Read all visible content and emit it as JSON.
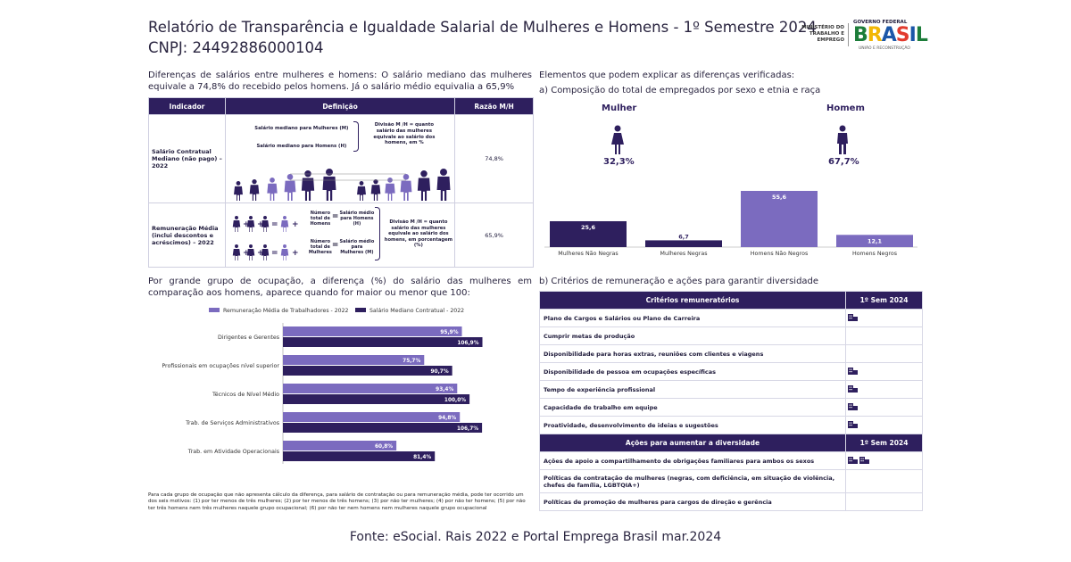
{
  "header": {
    "title": "Relatório de Transparência e Igualdade Salarial de Mulheres e Homens - 1º Semestre 2024",
    "cnpj": "CNPJ: 24492886000104",
    "logo_ministerio": "MINISTÉRIO DO TRABALHO E EMPREGO",
    "logo_governo": "GOVERNO FEDERAL",
    "logo_brasil": "BRASIL",
    "logo_uniao": "UNIÃO E RECONSTRUÇÃO"
  },
  "left": {
    "intro": "Diferenças de salários entre mulheres e homens: O salário mediano das mulheres equivale a 74,8% do recebido pelos homens. Já o salário médio equivalia a 65,9%",
    "table": {
      "headers": [
        "Indicador",
        "Definição",
        "Razão M/H"
      ],
      "rows": [
        {
          "indicator": "Salário Contratual Mediano (não pago) – 2022",
          "def_line1": "Salário mediano para Mulheres (M)",
          "def_line2": "Salário mediano para Homens (H)",
          "def_note": "Divisão M /H = quanto salário das mulheres equivale ao salário dos homens, em %",
          "ratio": "74,8%"
        },
        {
          "indicator": "Remuneração Média (inclui descontos e acréscimos) – 2022",
          "def_total_w": "Número total de Homens",
          "def_sal_w": "Salário médio para Homens (H)",
          "def_total_m": "Número total de Mulheres",
          "def_sal_m": "Salário médio para Mulheres (M)",
          "def_note": "Divisão M /H = quanto salário das mulheres equivale ao salário dos homens, em porcentagem (%)",
          "ratio": "65,9%"
        }
      ]
    },
    "group_intro": "Por grande grupo de ocupação, a diferença (%) do salário das mulheres em comparação aos homens, aparece quando for maior ou menor que 100:",
    "note": "Para cada grupo de ocupação que não apresenta cálculo da diferença, para salário de contratação ou para remuneração média, pode ter ocorrido um dos seis motivos: (1) por ter menos de três mulheres; (2) por ter menos de três homens; (3) por não ter mulheres; (4) por não ter homens; (5) por não ter três homens nem três mulheres naquele grupo ocupacional; (6) por não ter nem homens nem mulheres naquele grupo ocupacional"
  },
  "right": {
    "intro": "Elementos que podem explicar as diferenças verificadas:",
    "a_title": "a) Composição do total de empregados por sexo e etnia e raça",
    "women_label": "Mulher",
    "men_label": "Homem",
    "women_pct": "32,3%",
    "men_pct": "67,7%",
    "b_title": "b) Critérios de remuneração e ações para garantir diversidade",
    "criteria_header": "Critérios remuneratórios",
    "criteria_col": "1º Sem 2024",
    "criteria": [
      {
        "label": "Plano de Cargos e Salários ou Plano de Carreira",
        "icons": 1
      },
      {
        "label": "Cumprir metas de produção",
        "icons": 0
      },
      {
        "label": "Disponibilidade para horas extras, reuniões com clientes e viagens",
        "icons": 0
      },
      {
        "label": "Disponibilidade de pessoa em ocupações específicas",
        "icons": 1
      },
      {
        "label": "Tempo de experiência profissional",
        "icons": 1
      },
      {
        "label": "Capacidade de trabalho em equipe",
        "icons": 1
      },
      {
        "label": "Proatividade, desenvolvimento de ideias e sugestões",
        "icons": 1
      }
    ],
    "actions_header": "Ações para aumentar a diversidade",
    "actions_col": "1º Sem 2024",
    "actions": [
      {
        "label": "Ações de apoio a compartilhamento de obrigações familiares para ambos os sexos",
        "icons": 2
      },
      {
        "label": "Políticas de contratação de mulheres (negras, com deficiência, em situação de violência, chefes de família, LGBTQIA+)",
        "icons": 0
      },
      {
        "label": "Políticas de promoção de mulheres para cargos de direção e gerência",
        "icons": 0
      }
    ]
  },
  "footer": "Fonte: eSocial. Rais 2022 e Portal Emprega Brasil mar.2024",
  "colors": {
    "dark": "#2e1f5e",
    "light": "#7b6bbf",
    "text": "#2a2540"
  },
  "chart_data": [
    {
      "type": "bar",
      "categories": [
        "Mulheres Não Negras",
        "Mulheres Negras",
        "Homens Não Negros",
        "Homens Negros"
      ],
      "values": [
        25.6,
        6.7,
        55.6,
        12.1
      ],
      "value_labels": [
        "25,6",
        "6,7",
        "55,6",
        "12,1"
      ],
      "colors": [
        "#2e1f5e",
        "#2e1f5e",
        "#7b6bbf",
        "#7b6bbf"
      ],
      "ylim": [
        0,
        60
      ]
    },
    {
      "type": "bar",
      "orientation": "horizontal",
      "categories": [
        "Dirigentes e Gerentes",
        "Profissionais em ocupações nível superior",
        "Técnicos de Nível Médio",
        "Trab. de Serviços Administrativos",
        "Trab. em Atividade Operacionais"
      ],
      "series": [
        {
          "name": "Remuneração Média de Trabalhadores - 2022",
          "values": [
            95.9,
            75.7,
            93.4,
            94.8,
            60.8
          ],
          "labels": [
            "95,9%",
            "75,7%",
            "93,4%",
            "94,8%",
            "60,8%"
          ],
          "color": "#7b6bbf"
        },
        {
          "name": "Salário Mediano Contratual - 2022",
          "values": [
            106.9,
            90.7,
            100.0,
            106.7,
            81.4
          ],
          "labels": [
            "106,9%",
            "90,7%",
            "100,0%",
            "106,7%",
            "81,4%"
          ],
          "color": "#2e1f5e"
        }
      ],
      "xlim": [
        0,
        110
      ],
      "legend": "top"
    }
  ]
}
